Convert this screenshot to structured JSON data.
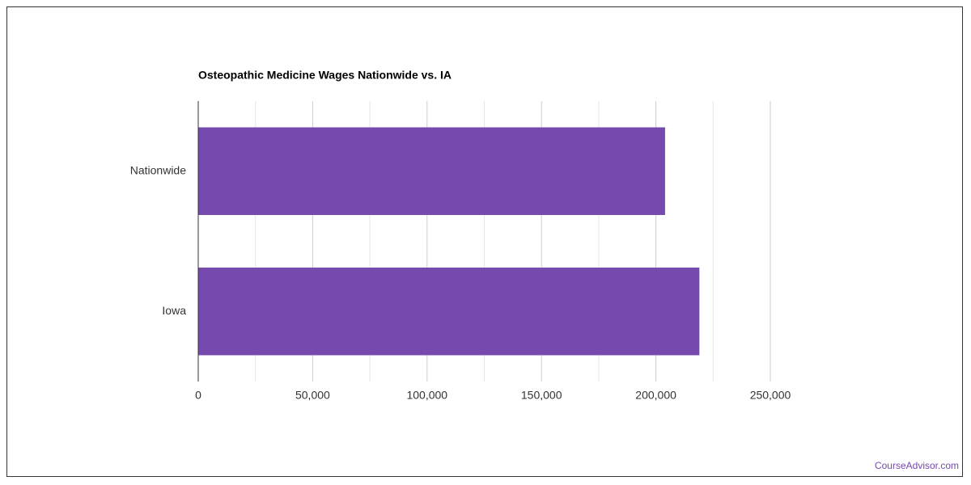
{
  "chart_data": {
    "type": "bar",
    "orientation": "horizontal",
    "title": "Osteopathic Medicine Wages Nationwide vs. IA",
    "categories": [
      "Nationwide",
      "Iowa"
    ],
    "values": [
      204000,
      219000
    ],
    "color": "#7549ad",
    "xlim": [
      0,
      250000
    ],
    "xticks": [
      0,
      {
        "value": 50000,
        "label": "50,000"
      },
      {
        "value": 100000,
        "label": "100,000"
      },
      {
        "value": 150000,
        "label": "150,000"
      },
      {
        "value": 200000,
        "label": "200,000"
      },
      {
        "value": 250000,
        "label": "250,000"
      }
    ],
    "grid": true
  },
  "footer": {
    "source": "CourseAdvisor.com"
  }
}
